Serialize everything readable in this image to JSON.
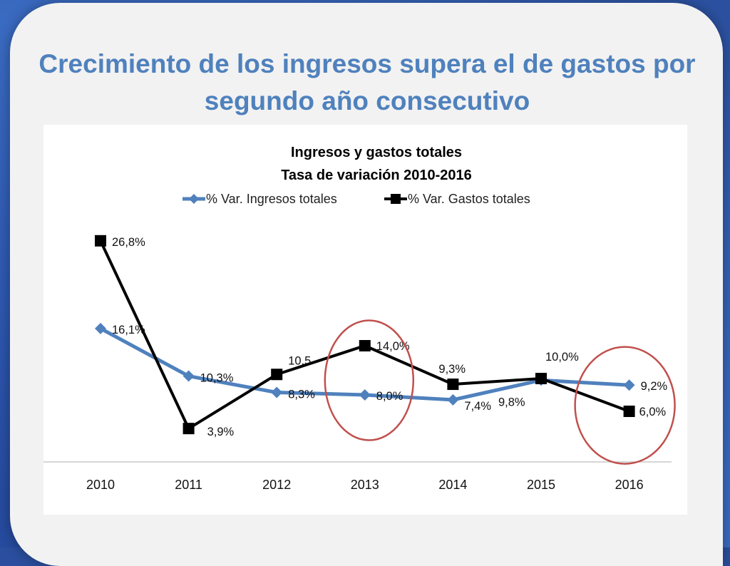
{
  "slide": {
    "title_line1": "Crecimiento de los ingresos supera el de gastos por",
    "title_line2": "segundo año consecutivo"
  },
  "colors": {
    "ingresos": "#4f81bd",
    "gastos": "#000000",
    "highlight_circle": "#c0504d",
    "title": "#4f81bd"
  },
  "chart_data": {
    "type": "line",
    "title": "Ingresos y gastos totales",
    "subtitle": "Tasa de variación 2010-2016",
    "xlabel": "",
    "ylabel": "",
    "categories": [
      "2010",
      "2011",
      "2012",
      "2013",
      "2014",
      "2015",
      "2016"
    ],
    "ylim": [
      0,
      30
    ],
    "grid": false,
    "legend_position": "top",
    "series": [
      {
        "name": "% Var. Ingresos totales",
        "marker": "diamond",
        "values": [
          16.1,
          10.3,
          8.3,
          8.0,
          7.4,
          9.8,
          9.2
        ],
        "labels": [
          "16,1%",
          "10,3%",
          "8,3%",
          "8,0%",
          "7,4%",
          "9,8%",
          "9,2%"
        ]
      },
      {
        "name": "% Var. Gastos totales",
        "marker": "square",
        "values": [
          26.8,
          3.9,
          10.5,
          14.0,
          9.3,
          10.0,
          6.0
        ],
        "labels": [
          "26,8%",
          "3,9%",
          "10,5",
          "14,0%",
          "9,3%",
          "10,0%",
          "6,0%"
        ]
      }
    ],
    "highlighted_categories": [
      "2013",
      "2016"
    ]
  }
}
